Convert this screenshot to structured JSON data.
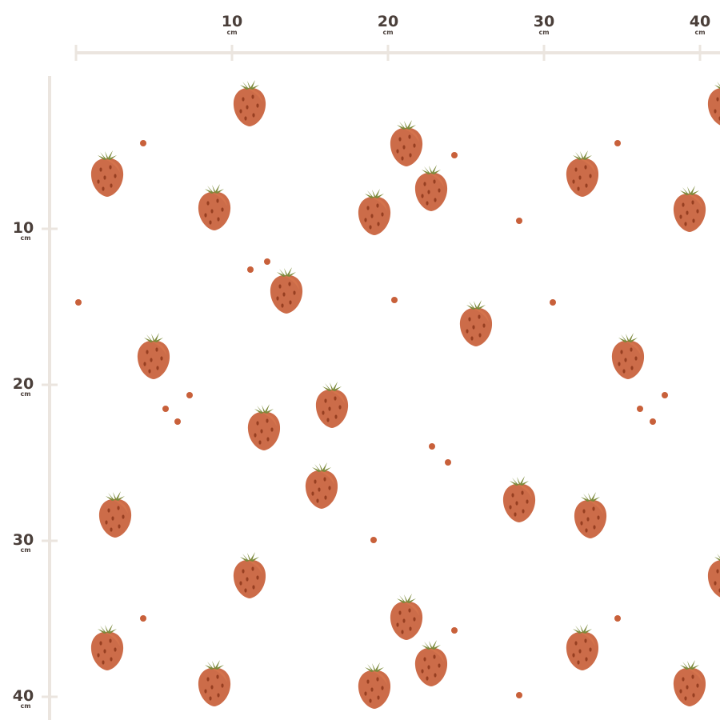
{
  "ruler": {
    "top": [
      {
        "label": "10",
        "unit": "cm"
      },
      {
        "label": "20",
        "unit": "cm"
      },
      {
        "label": "30",
        "unit": "cm"
      },
      {
        "label": "40",
        "unit": "cm"
      }
    ],
    "left": [
      {
        "label": "10",
        "unit": "cm"
      },
      {
        "label": "20",
        "unit": "cm"
      },
      {
        "label": "30",
        "unit": "cm"
      },
      {
        "label": "40",
        "unit": "cm"
      }
    ]
  }
}
